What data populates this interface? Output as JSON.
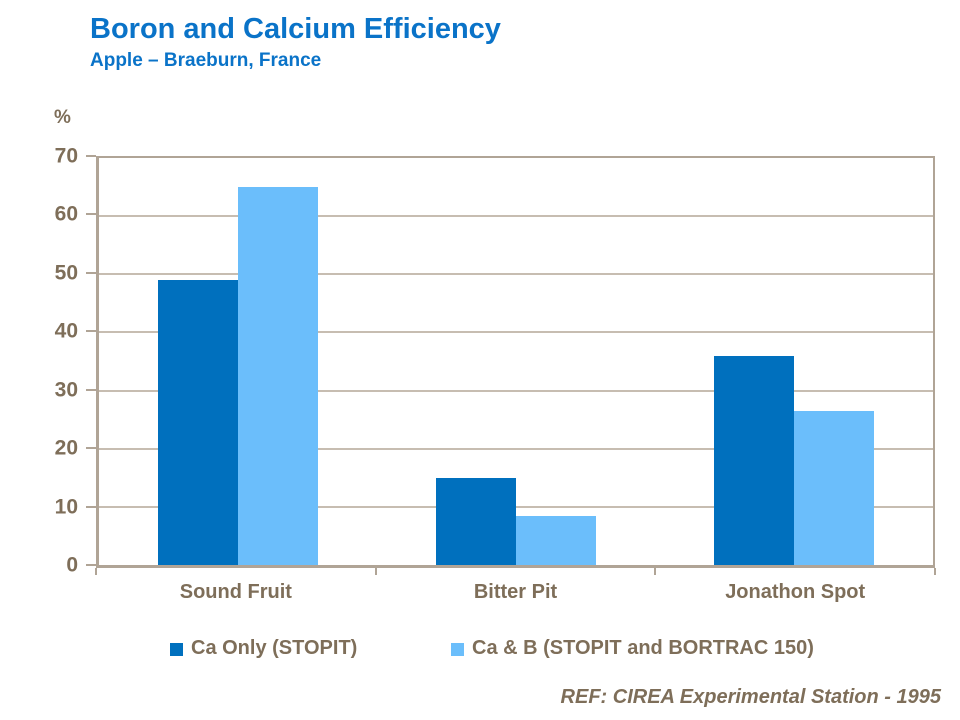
{
  "header": {
    "title": "Boron and Calcium Efficiency",
    "subtitle": "Apple – Braeburn, France"
  },
  "chart_data": {
    "type": "bar",
    "title": "Boron and Calcium Efficiency",
    "subtitle": "Apple – Braeburn, France",
    "xlabel": "",
    "ylabel": "%",
    "ylim": [
      0,
      70
    ],
    "ytick_interval": 10,
    "yticks": [
      0,
      10,
      20,
      30,
      40,
      50,
      60,
      70
    ],
    "grid": true,
    "legend_position": "bottom",
    "categories": [
      "Sound Fruit",
      "Bitter Pit",
      "Jonathon Spot"
    ],
    "series": [
      {
        "name": "Ca Only (STOPIT)",
        "color": "#0070BE",
        "values": [
          49,
          15,
          36
        ]
      },
      {
        "name": "Ca & B (STOPIT and BORTRAC 150)",
        "color": "#6BBEFB",
        "values": [
          65,
          8.5,
          26.5
        ]
      }
    ]
  },
  "footer": {
    "reference": "REF: CIREA Experimental Station - 1995"
  },
  "colors": {
    "title_blue": "#0A73C8",
    "series_dark_blue": "#0070BE",
    "series_light_blue": "#6BBEFB",
    "label_text": "#7E6E59",
    "axis_line": "#B0A496",
    "gridline": "#C7BDB1",
    "background": "#FFFFFF"
  }
}
